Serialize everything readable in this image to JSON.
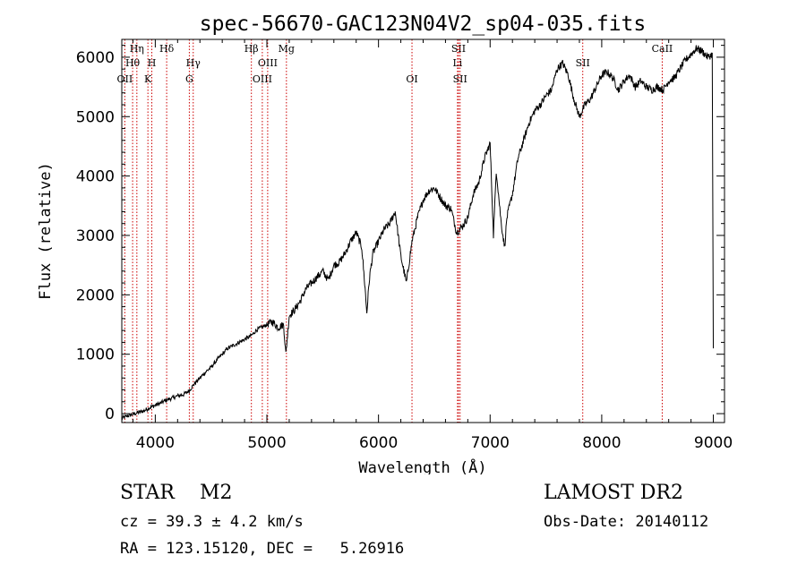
{
  "chart_data": {
    "type": "line",
    "title": "spec-56670-GAC123N04V2_sp04-035.fits",
    "xlabel": "Wavelength (Å)",
    "ylabel": "Flux (relative)",
    "xlim": [
      3700,
      9100
    ],
    "ylim": [
      -150,
      6300
    ],
    "xticks": [
      4000,
      5000,
      6000,
      7000,
      8000,
      9000
    ],
    "yticks": [
      0,
      1000,
      2000,
      3000,
      4000,
      5000,
      6000
    ],
    "grid": false,
    "line_color": "#000000",
    "marker_color": "#cc0000",
    "series": [
      {
        "x": [
          3700,
          3750,
          3800,
          3850,
          3900,
          3950,
          4000,
          4050,
          4100,
          4150,
          4200,
          4250,
          4300,
          4350,
          4400,
          4450,
          4500,
          4550,
          4600,
          4650,
          4700,
          4750,
          4800,
          4850,
          4880,
          4900,
          4950,
          5000,
          5050,
          5100,
          5150,
          5170,
          5200,
          5250,
          5300,
          5350,
          5400,
          5450,
          5500,
          5550,
          5600,
          5650,
          5700,
          5750,
          5800,
          5850,
          5880,
          5895,
          5920,
          5950,
          6000,
          6050,
          6100,
          6150,
          6200,
          6250,
          6300,
          6350,
          6400,
          6450,
          6500,
          6550,
          6600,
          6650,
          6700,
          6750,
          6800,
          6850,
          6900,
          6950,
          7000,
          7030,
          7055,
          7100,
          7130,
          7150,
          7200,
          7250,
          7300,
          7350,
          7400,
          7450,
          7500,
          7550,
          7600,
          7650,
          7700,
          7750,
          7800,
          7850,
          7900,
          7950,
          8000,
          8050,
          8100,
          8150,
          8200,
          8250,
          8300,
          8350,
          8400,
          8450,
          8500,
          8550,
          8600,
          8650,
          8700,
          8750,
          8800,
          8850,
          8900,
          8950,
          8990,
          9000
        ],
        "y": [
          -80,
          -40,
          -10,
          20,
          50,
          100,
          140,
          180,
          230,
          260,
          300,
          320,
          380,
          500,
          600,
          700,
          780,
          900,
          1000,
          1100,
          1150,
          1200,
          1250,
          1300,
          1350,
          1400,
          1450,
          1500,
          1550,
          1450,
          1500,
          1000,
          1650,
          1750,
          1900,
          2100,
          2200,
          2300,
          2400,
          2250,
          2500,
          2550,
          2700,
          2900,
          3050,
          2800,
          2100,
          1700,
          2300,
          2700,
          2900,
          3100,
          3200,
          3400,
          2650,
          2200,
          2900,
          3300,
          3600,
          3750,
          3800,
          3650,
          3500,
          3450,
          3050,
          3150,
          3300,
          3700,
          3900,
          4300,
          4550,
          3000,
          4100,
          3200,
          2800,
          3300,
          3700,
          4300,
          4600,
          4900,
          5100,
          5200,
          5350,
          5450,
          5800,
          5900,
          5700,
          5300,
          5000,
          5200,
          5300,
          5500,
          5700,
          5750,
          5650,
          5450,
          5600,
          5700,
          5500,
          5600,
          5500,
          5450,
          5500,
          5450,
          5600,
          5650,
          5800,
          5950,
          6050,
          6150,
          6100,
          6000,
          6050,
          1100
        ]
      }
    ],
    "lines": [
      {
        "label": "OII",
        "x": 3727
      },
      {
        "label": "Hθ",
        "x": 3797
      },
      {
        "label": "Hη",
        "x": 3835
      },
      {
        "label": "K",
        "x": 3934
      },
      {
        "label": "H",
        "x": 3969
      },
      {
        "label": "Hδ",
        "x": 4102
      },
      {
        "label": "G",
        "x": 4305
      },
      {
        "label": "Hγ",
        "x": 4340
      },
      {
        "label": "Hβ",
        "x": 4861
      },
      {
        "label": "OIII",
        "x": 4959
      },
      {
        "label": "OIII",
        "x": 5007
      },
      {
        "label": "Mg",
        "x": 5175
      },
      {
        "label": "OI",
        "x": 6300
      },
      {
        "label": "Li",
        "x": 6708
      },
      {
        "label": "SII",
        "x": 6717
      },
      {
        "label": "SII",
        "x": 6731
      },
      {
        "label": "SII",
        "x": 7830
      },
      {
        "label": "CaII",
        "x": 8542
      }
    ]
  },
  "info": {
    "class_line": "STAR    M2",
    "survey": "LAMOST DR2",
    "cz_line": "cz = 39.3 ± 4.2 km/s",
    "obs_date": "Obs-Date: 20140112",
    "coords_line": "RA = 123.15120, DEC =   5.26916"
  }
}
